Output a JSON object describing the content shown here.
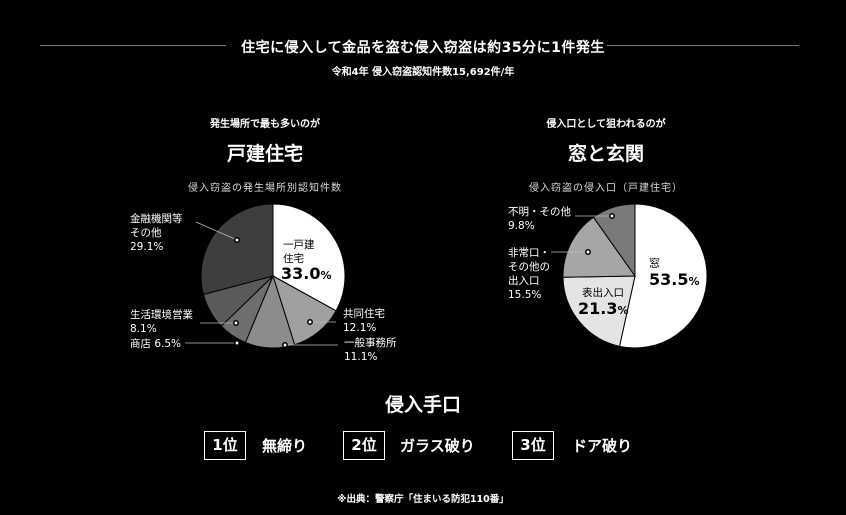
{
  "header": {
    "title": "住宅に侵入して金品を盗む侵入窃盗は約35分に1件発生",
    "subtitle": "令和4年 侵入窃盗認知件数15,692件/年"
  },
  "left_panel": {
    "lead": "発生場所で最も多いのが",
    "headline": "戸建住宅",
    "caption": "侵入窃盗の発生場所別認知件数"
  },
  "right_panel": {
    "lead": "侵入口として狙われるのが",
    "headline": "窓と玄関",
    "caption": "侵入窃盗の侵入口（戸建住宅）"
  },
  "chart_data": [
    {
      "type": "pie",
      "title": "侵入窃盗の発生場所別認知件数",
      "slices": [
        {
          "name": "一戸建住宅",
          "label_lines": [
            "一戸建",
            "住宅"
          ],
          "value": 33.0,
          "pct_text": "33.0",
          "color": "#ffffff"
        },
        {
          "name": "共同住宅",
          "label_lines": [
            "共同住宅"
          ],
          "value": 12.1,
          "pct_text": "12.1%",
          "color": "#a0a0a0"
        },
        {
          "name": "一般事務所",
          "label_lines": [
            "一般事務所"
          ],
          "value": 11.1,
          "pct_text": "11.1%",
          "color": "#8c8c8c"
        },
        {
          "name": "商店",
          "label_lines": [
            "商店 6.5%"
          ],
          "value": 6.5,
          "pct_text": "",
          "color": "#6e6e6e"
        },
        {
          "name": "生活環境営業",
          "label_lines": [
            "生活環境営業"
          ],
          "value": 8.1,
          "pct_text": "8.1%",
          "color": "#5a5a5a"
        },
        {
          "name": "金融機関等その他",
          "label_lines": [
            "金融機関等",
            "その他"
          ],
          "value": 29.1,
          "pct_text": "29.1%",
          "color": "#3e3e3e"
        }
      ]
    },
    {
      "type": "pie",
      "title": "侵入窃盗の侵入口（戸建住宅）",
      "slices": [
        {
          "name": "窓",
          "label_lines": [
            "窓"
          ],
          "value": 53.5,
          "pct_text": "53.5",
          "color": "#ffffff"
        },
        {
          "name": "表出入口",
          "label_lines": [
            "表出入口"
          ],
          "value": 21.3,
          "pct_text": "21.3",
          "color": "#e4e4e4"
        },
        {
          "name": "非常口・その他の出入口",
          "label_lines": [
            "非常口・",
            "その他の",
            "出入口"
          ],
          "value": 15.5,
          "pct_text": "15.5%",
          "color": "#a6a6a6"
        },
        {
          "name": "不明・その他",
          "label_lines": [
            "不明・その他"
          ],
          "value": 9.8,
          "pct_text": "9.8%",
          "color": "#7a7a7a"
        }
      ]
    }
  ],
  "methods": {
    "title": "侵入手口",
    "items": [
      {
        "rank": "1位",
        "label": "無締り"
      },
      {
        "rank": "2位",
        "label": "ガラス破り"
      },
      {
        "rank": "3位",
        "label": "ドア破り"
      }
    ]
  },
  "source": "※出典：警察庁「住まいる防犯110番」"
}
